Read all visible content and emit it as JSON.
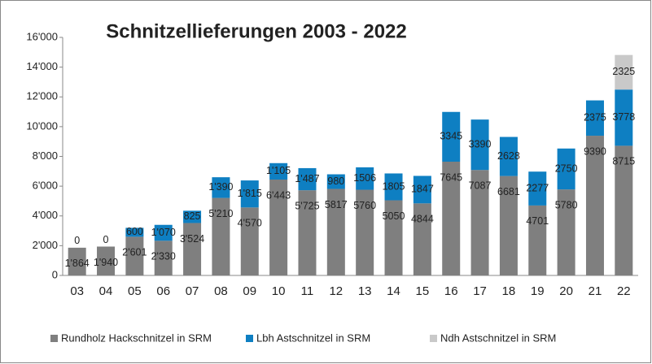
{
  "chart_data": {
    "type": "stacked-bar",
    "title": "Schnitzellieferungen 2003 - 2022",
    "categories": [
      "03",
      "04",
      "05",
      "06",
      "07",
      "08",
      "09",
      "10",
      "11",
      "12",
      "13",
      "14",
      "15",
      "16",
      "17",
      "18",
      "19",
      "20",
      "21",
      "22"
    ],
    "series": [
      {
        "name": "Rundholz Hackschnitzel in SRM",
        "color": "#7f7f7f",
        "values": [
          1864,
          1940,
          2601,
          2330,
          3524,
          5210,
          4570,
          6443,
          5725,
          5817,
          5760,
          5050,
          4844,
          7645,
          7087,
          6681,
          4701,
          5780,
          9390,
          8715
        ],
        "value_labels": [
          "1'864",
          "1'940",
          "2'601",
          "2'330",
          "3'524",
          "5'210",
          "4'570",
          "6'443",
          "5'725",
          "5817",
          "5760",
          "5050",
          "4844",
          "7645",
          "7087",
          "6681",
          "4701",
          "5780",
          "9390",
          "8715"
        ]
      },
      {
        "name": "Lbh Astschnitzel in SRM",
        "color": "#0e7fc2",
        "values": [
          0,
          0,
          600,
          1070,
          825,
          1390,
          1815,
          1105,
          1487,
          980,
          1506,
          1805,
          1847,
          3345,
          3390,
          2628,
          2277,
          2750,
          2375,
          3778
        ],
        "value_labels": [
          "0",
          "0",
          "600",
          "1'070",
          "825",
          "1'390",
          "1'815",
          "1'105",
          "1'487",
          "980",
          "1506",
          "1805",
          "1847",
          "3345",
          "3390",
          "2628",
          "2277",
          "2750",
          "2375",
          "3778"
        ]
      },
      {
        "name": "Ndh Astschnitzel in SRM",
        "color": "#c9c9c9",
        "values": [
          null,
          null,
          null,
          null,
          null,
          null,
          null,
          null,
          null,
          null,
          null,
          null,
          null,
          null,
          null,
          null,
          null,
          null,
          null,
          2325
        ]
      }
    ],
    "ylim": [
      0,
      16000
    ],
    "yticks": [
      0,
      {
        "value": 2000,
        "label": "2'000"
      },
      {
        "value": 4000,
        "label": "4'000"
      },
      {
        "value": 6000,
        "label": "6'000"
      },
      {
        "value": 8000,
        "label": "8'000"
      },
      {
        "value": 10000,
        "label": "10'000"
      },
      {
        "value": 12000,
        "label": "12'000"
      },
      {
        "value": 14000,
        "label": "14'000"
      },
      {
        "value": 16000,
        "label": "16'000"
      }
    ],
    "legend": "bottom"
  }
}
